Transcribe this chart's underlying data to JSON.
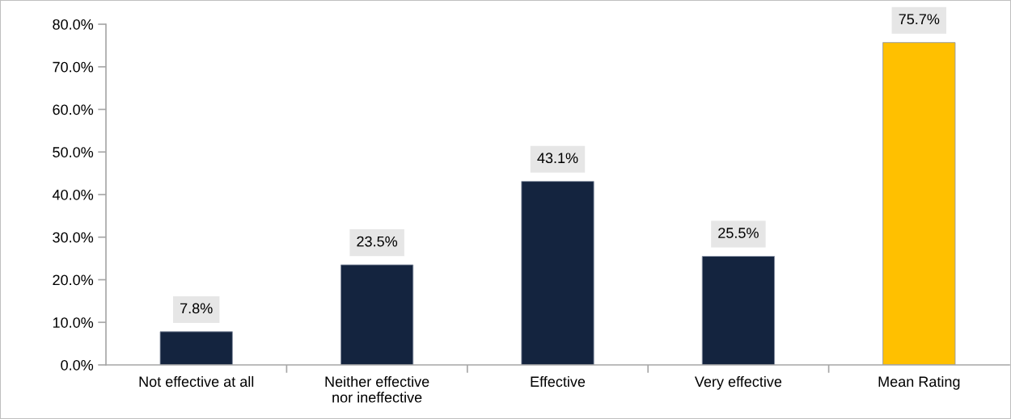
{
  "chart_data": {
    "type": "bar",
    "categories": [
      "Not effective at all",
      "Neither effective nor ineffective",
      "Effective",
      "Very effective",
      "Mean Rating"
    ],
    "values": [
      7.8,
      23.5,
      43.1,
      25.5,
      75.7
    ],
    "colors": [
      "#14243f",
      "#14243f",
      "#14243f",
      "#14243f",
      "#ffc000"
    ],
    "ylim": [
      0,
      80
    ],
    "yticks": [
      {
        "value": 0,
        "label": "0.0%"
      },
      {
        "value": 10,
        "label": "10.0%"
      },
      {
        "value": 20,
        "label": "20.0%"
      },
      {
        "value": 30,
        "label": "30.0%"
      },
      {
        "value": 40,
        "label": "40.0%"
      },
      {
        "value": 50,
        "label": "50.0%"
      },
      {
        "value": 60,
        "label": "60.0%"
      },
      {
        "value": 70,
        "label": "70.0%"
      },
      {
        "value": 80,
        "label": "80.0%"
      }
    ],
    "value_labels": [
      "7.8%",
      "23.5%",
      "43.1%",
      "25.5%",
      "75.7%"
    ],
    "grid": false,
    "legend": false
  }
}
